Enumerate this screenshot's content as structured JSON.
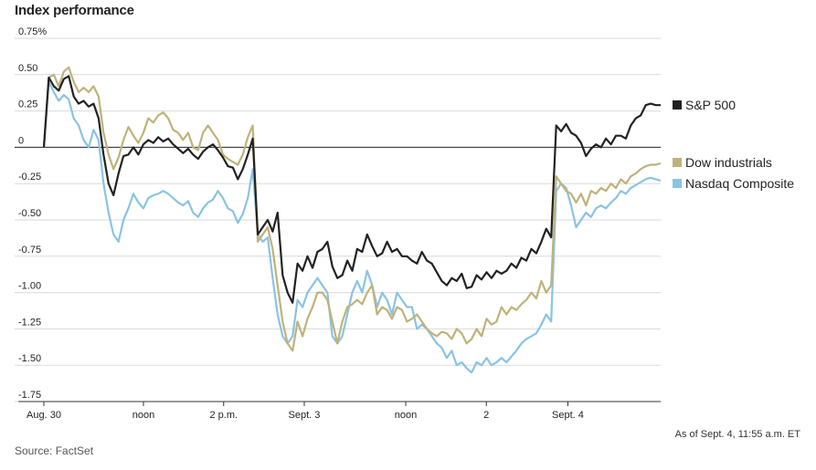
{
  "header": {
    "title": "Index performance"
  },
  "footer": {
    "source": "Source: FactSet",
    "timestamp": "As of Sept. 4, 11:55 a.m. ET"
  },
  "chart_data": {
    "type": "line",
    "title": "Index performance",
    "xlabel": "",
    "ylabel": "",
    "ylim": [
      -1.75,
      0.75
    ],
    "grid": true,
    "legend_placement": "right",
    "y_ticks": [
      "0.75%",
      "0.50",
      "0.25",
      "0",
      "-0.25",
      "-0.50",
      "-0.75",
      "-1.00",
      "-1.25",
      "-1.50",
      "-1.75"
    ],
    "x_ticks": [
      "Aug. 30",
      "noon",
      "2 p.m.",
      "Sept. 3",
      "noon",
      "2",
      "Sept. 4"
    ],
    "series": [
      {
        "name": "S&P 500",
        "color": "#222222",
        "values": [
          0.0,
          0.48,
          0.42,
          0.39,
          0.47,
          0.49,
          0.35,
          0.3,
          0.32,
          0.28,
          0.3,
          0.2,
          -0.05,
          -0.25,
          -0.33,
          -0.18,
          -0.06,
          -0.05,
          0.0,
          -0.05,
          0.02,
          0.05,
          0.03,
          0.07,
          0.04,
          0.06,
          0.02,
          -0.01,
          -0.04,
          -0.01,
          -0.05,
          -0.08,
          -0.03,
          0.0,
          0.02,
          -0.02,
          -0.07,
          -0.13,
          -0.14,
          -0.22,
          -0.15,
          -0.05,
          0.06,
          -0.6,
          -0.55,
          -0.5,
          -0.58,
          -0.45,
          -0.88,
          -1.0,
          -1.07,
          -0.8,
          -0.85,
          -0.75,
          -0.83,
          -0.72,
          -0.7,
          -0.65,
          -0.82,
          -0.9,
          -0.88,
          -0.78,
          -0.85,
          -0.7,
          -0.72,
          -0.6,
          -0.68,
          -0.75,
          -0.73,
          -0.65,
          -0.72,
          -0.7,
          -0.75,
          -0.75,
          -0.78,
          -0.8,
          -0.72,
          -0.78,
          -0.8,
          -0.86,
          -0.92,
          -0.95,
          -0.9,
          -0.92,
          -0.87,
          -0.97,
          -0.96,
          -0.88,
          -0.91,
          -0.86,
          -0.9,
          -0.85,
          -0.87,
          -0.85,
          -0.8,
          -0.83,
          -0.76,
          -0.78,
          -0.7,
          -0.73,
          -0.65,
          -0.56,
          -0.62,
          0.15,
          0.11,
          0.16,
          0.1,
          0.08,
          0.03,
          -0.06,
          -0.01,
          0.02,
          0.0,
          0.06,
          0.02,
          0.08,
          0.08,
          0.06,
          0.15,
          0.2,
          0.22,
          0.29,
          0.3,
          0.29,
          0.29
        ]
      },
      {
        "name": "Dow industrials",
        "color": "#bfb27a",
        "values": [
          0.0,
          0.48,
          0.5,
          0.42,
          0.52,
          0.55,
          0.45,
          0.38,
          0.41,
          0.38,
          0.42,
          0.35,
          0.1,
          -0.05,
          -0.15,
          -0.07,
          0.05,
          0.14,
          0.08,
          0.03,
          0.1,
          0.2,
          0.17,
          0.22,
          0.24,
          0.2,
          0.12,
          0.1,
          0.05,
          0.1,
          0.0,
          -0.02,
          0.1,
          0.15,
          0.1,
          0.05,
          -0.05,
          -0.08,
          -0.1,
          -0.12,
          -0.05,
          0.07,
          0.15,
          -0.65,
          -0.6,
          -0.55,
          -0.7,
          -0.95,
          -1.2,
          -1.35,
          -1.4,
          -1.2,
          -1.3,
          -1.18,
          -1.1,
          -1.0,
          -1.0,
          -1.05,
          -1.2,
          -1.35,
          -1.2,
          -1.1,
          -1.08,
          -1.05,
          -1.08,
          -1.0,
          -0.95,
          -1.15,
          -1.1,
          -1.12,
          -1.18,
          -1.1,
          -1.12,
          -1.2,
          -1.18,
          -1.15,
          -1.2,
          -1.25,
          -1.28,
          -1.3,
          -1.27,
          -1.28,
          -1.32,
          -1.25,
          -1.28,
          -1.35,
          -1.32,
          -1.25,
          -1.3,
          -1.18,
          -1.22,
          -1.2,
          -1.1,
          -1.15,
          -1.1,
          -1.12,
          -1.08,
          -1.05,
          -1.0,
          -1.04,
          -0.92,
          -1.0,
          -0.95,
          -0.2,
          -0.25,
          -0.3,
          -0.32,
          -0.38,
          -0.32,
          -0.4,
          -0.3,
          -0.32,
          -0.28,
          -0.3,
          -0.25,
          -0.28,
          -0.22,
          -0.25,
          -0.2,
          -0.18,
          -0.15,
          -0.13,
          -0.12,
          -0.12,
          -0.11
        ]
      },
      {
        "name": "Nasdaq Composite",
        "color": "#8ac3e4",
        "values": [
          0.0,
          0.45,
          0.38,
          0.32,
          0.36,
          0.33,
          0.2,
          0.15,
          0.05,
          0.0,
          0.12,
          0.05,
          -0.25,
          -0.45,
          -0.6,
          -0.65,
          -0.5,
          -0.42,
          -0.32,
          -0.38,
          -0.42,
          -0.35,
          -0.33,
          -0.32,
          -0.3,
          -0.32,
          -0.35,
          -0.38,
          -0.4,
          -0.37,
          -0.45,
          -0.48,
          -0.42,
          -0.38,
          -0.36,
          -0.3,
          -0.35,
          -0.42,
          -0.44,
          -0.52,
          -0.46,
          -0.35,
          -0.15,
          -0.6,
          -0.65,
          -0.62,
          -0.9,
          -1.15,
          -1.3,
          -1.35,
          -1.3,
          -1.05,
          -1.1,
          -1.0,
          -0.95,
          -0.9,
          -0.95,
          -1.0,
          -1.3,
          -1.35,
          -1.3,
          -1.15,
          -1.0,
          -0.92,
          -1.0,
          -0.85,
          -0.95,
          -1.1,
          -1.0,
          -1.05,
          -1.15,
          -1.0,
          -1.05,
          -1.1,
          -1.1,
          -1.25,
          -1.22,
          -1.25,
          -1.3,
          -1.35,
          -1.38,
          -1.45,
          -1.4,
          -1.5,
          -1.48,
          -1.52,
          -1.55,
          -1.48,
          -1.5,
          -1.45,
          -1.5,
          -1.48,
          -1.45,
          -1.48,
          -1.44,
          -1.4,
          -1.35,
          -1.32,
          -1.3,
          -1.28,
          -1.22,
          -1.15,
          -1.2,
          -0.3,
          -0.25,
          -0.28,
          -0.4,
          -0.55,
          -0.5,
          -0.45,
          -0.48,
          -0.42,
          -0.4,
          -0.42,
          -0.38,
          -0.35,
          -0.3,
          -0.32,
          -0.28,
          -0.26,
          -0.24,
          -0.22,
          -0.21,
          -0.22,
          -0.23
        ]
      }
    ]
  }
}
